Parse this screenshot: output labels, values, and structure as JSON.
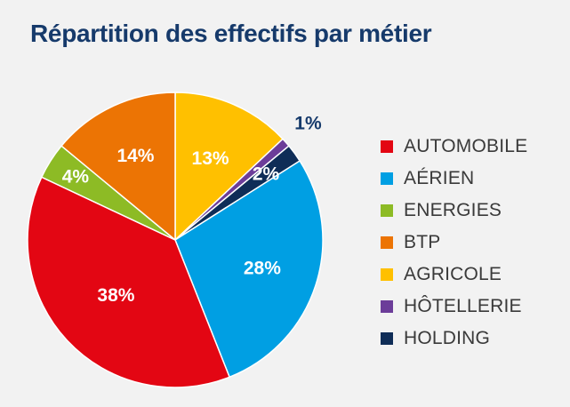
{
  "title": "Répartition des effectifs par métier",
  "chart_data": {
    "type": "pie",
    "title": "Répartition des effectifs par métier",
    "slices": [
      {
        "name": "AGRICOLE",
        "value": 13,
        "label": "13%",
        "color": "#ffc000"
      },
      {
        "name": "HÔTELLERIE",
        "value": 1,
        "label": "1%",
        "color": "#6c3d99"
      },
      {
        "name": "HOLDING",
        "value": 2,
        "label": "2%",
        "color": "#0f2d57"
      },
      {
        "name": "AÉRIEN",
        "value": 28,
        "label": "28%",
        "color": "#009fe3"
      },
      {
        "name": "AUTOMOBILE",
        "value": 38,
        "label": "38%",
        "color": "#e30613"
      },
      {
        "name": "ENERGIES",
        "value": 4,
        "label": "4%",
        "color": "#8dbb25"
      },
      {
        "name": "BTP",
        "value": 14,
        "label": "14%",
        "color": "#ec7404"
      }
    ],
    "legend": [
      {
        "label": "AUTOMOBILE",
        "color": "#e30613"
      },
      {
        "label": "AÉRIEN",
        "color": "#009fe3"
      },
      {
        "label": "ENERGIES",
        "color": "#8dbb25"
      },
      {
        "label": "BTP",
        "color": "#ec7404"
      },
      {
        "label": "AGRICOLE",
        "color": "#ffc000"
      },
      {
        "label": "HÔTELLERIE",
        "color": "#6c3d99"
      },
      {
        "label": "HOLDING",
        "color": "#0f2d57"
      }
    ],
    "legend_position": "right"
  }
}
